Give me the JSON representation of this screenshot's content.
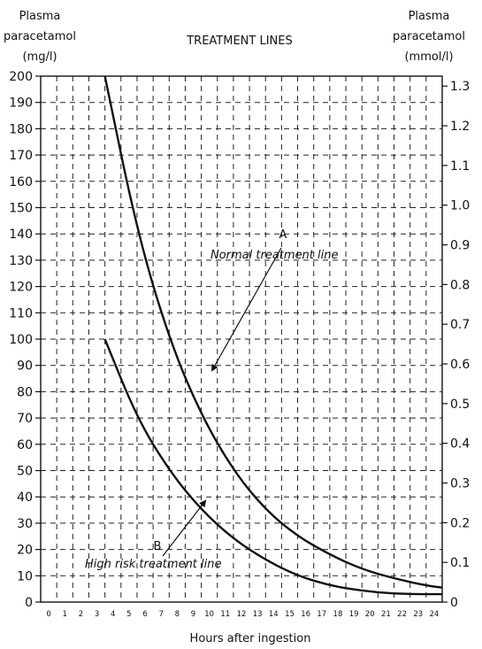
{
  "chart_data": {
    "type": "line",
    "title": "TREATMENT LINES",
    "ylabel_left": [
      "Plasma",
      "paracetamol",
      "(mg/l)"
    ],
    "ylabel_right": [
      "Plasma",
      "paracetamol",
      "(mmol/l)"
    ],
    "xlabel": "Hours after ingestion",
    "xlim": [
      0,
      25
    ],
    "ylim": [
      0,
      200
    ],
    "ylim_right": [
      0,
      1.325
    ],
    "x_ticks": [
      "0",
      "1",
      "2",
      "3",
      "4",
      "5",
      "6",
      "7",
      "8",
      "9",
      "10",
      "11",
      "12",
      "13",
      "14",
      "15",
      "16",
      "17",
      "18",
      "19",
      "20",
      "21",
      "22",
      "23",
      "24"
    ],
    "y_ticks_left": [
      "0",
      "10",
      "20",
      "30",
      "40",
      "50",
      "60",
      "70",
      "80",
      "90",
      "100",
      "110",
      "120",
      "130",
      "140",
      "150",
      "160",
      "170",
      "180",
      "190",
      "200"
    ],
    "y_ticks_right": [
      "0",
      "0.1",
      "0.2",
      "0.3",
      "0.4",
      "0.5",
      "0.6",
      "0.7",
      "0.8",
      "0.9",
      "1.0",
      "1.1",
      "1.2",
      "1.3"
    ],
    "grid": true,
    "series": [
      {
        "name": "Normal treatment line",
        "letter": "A",
        "x": [
          4,
          6,
          8,
          10,
          12,
          14,
          16,
          18,
          20,
          22,
          24,
          25
        ],
        "y": [
          200,
          141,
          100,
          71,
          50,
          35,
          25,
          18,
          12.5,
          9,
          6.3,
          5.5
        ]
      },
      {
        "name": "High risk treatment line",
        "letter": "B",
        "x": [
          4,
          6,
          8,
          10,
          12,
          14,
          16,
          18,
          20,
          22,
          24,
          25
        ],
        "y": [
          100,
          70,
          50,
          35,
          24,
          16,
          10,
          6.3,
          4.3,
          3.2,
          3,
          3
        ]
      }
    ]
  }
}
